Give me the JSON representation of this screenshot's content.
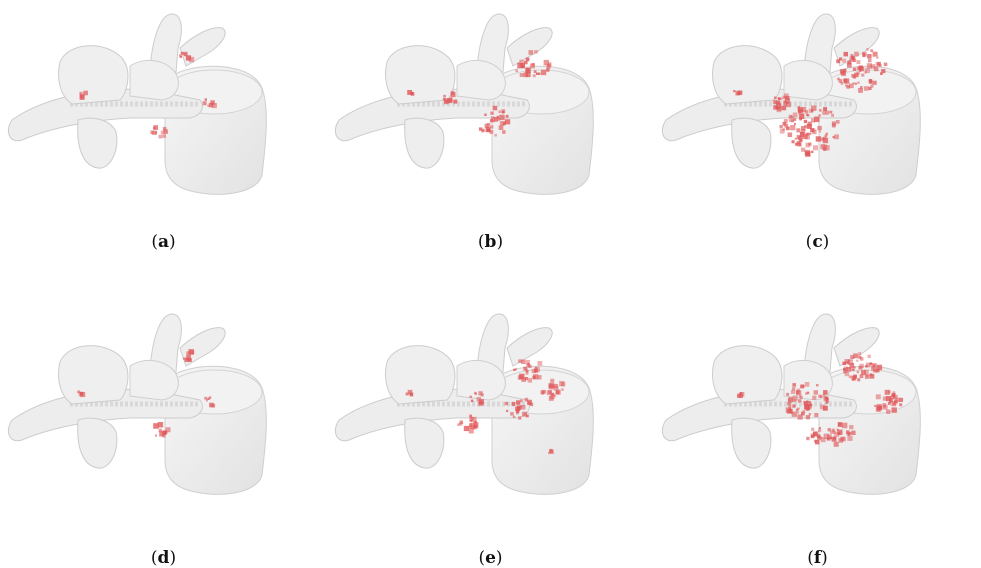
{
  "figure": {
    "panels": [
      {
        "id": "a",
        "label": "a",
        "overlay": "sparse-small"
      },
      {
        "id": "b",
        "label": "b",
        "overlay": "medium"
      },
      {
        "id": "c",
        "label": "c",
        "overlay": "dense-large"
      },
      {
        "id": "d",
        "label": "d",
        "overlay": "sparse-small"
      },
      {
        "id": "e",
        "label": "e",
        "overlay": "medium-ring"
      },
      {
        "id": "f",
        "label": "f",
        "overlay": "dense-spread"
      }
    ],
    "colors": {
      "bone_fill": "#ececec",
      "bone_stroke": "#c9c9c9",
      "highlight": "#e0585a"
    }
  }
}
